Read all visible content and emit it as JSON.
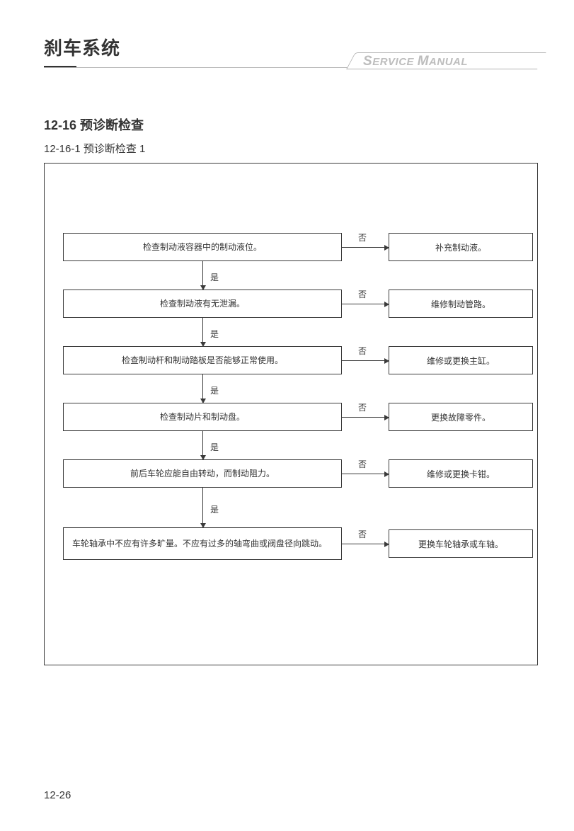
{
  "chapter_title": "刹车系统",
  "banner_html": "<span class='big'>S</span>ERVICE <span class='big'>M</span>ANUAL",
  "section_title": "12-16  预诊断检查",
  "subsection_title": "12-16-1 预诊断检查 1",
  "page_number": "12-26",
  "flowchart": {
    "yes_label": "是",
    "no_label": "否",
    "border_color": "#3a3a3a",
    "text_color": "#333333",
    "font_size": 12,
    "steps": [
      {
        "check": "检查制动液容器中的制动液位。",
        "action": "补充制动液。",
        "multiline": false
      },
      {
        "check": "检查制动液有无泄漏。",
        "action": "维修制动管路。",
        "multiline": false
      },
      {
        "check": "检查制动杆和制动踏板是否能够正常使用。",
        "action": "维修或更换主缸。",
        "multiline": false
      },
      {
        "check": "检查制动片和制动盘。",
        "action": "更换故障零件。",
        "multiline": false
      },
      {
        "check": "前后车轮应能自由转动，而制动阻力。",
        "action": "维修或更换卡钳。",
        "multiline": false
      },
      {
        "check": "车轮轴承中不应有许多旷量。\n不应有过多的轴弯曲或阀盘径向跳动。",
        "action": "更换车轮轴承或车轴。",
        "multiline": true
      }
    ],
    "last_v_height": 56
  }
}
